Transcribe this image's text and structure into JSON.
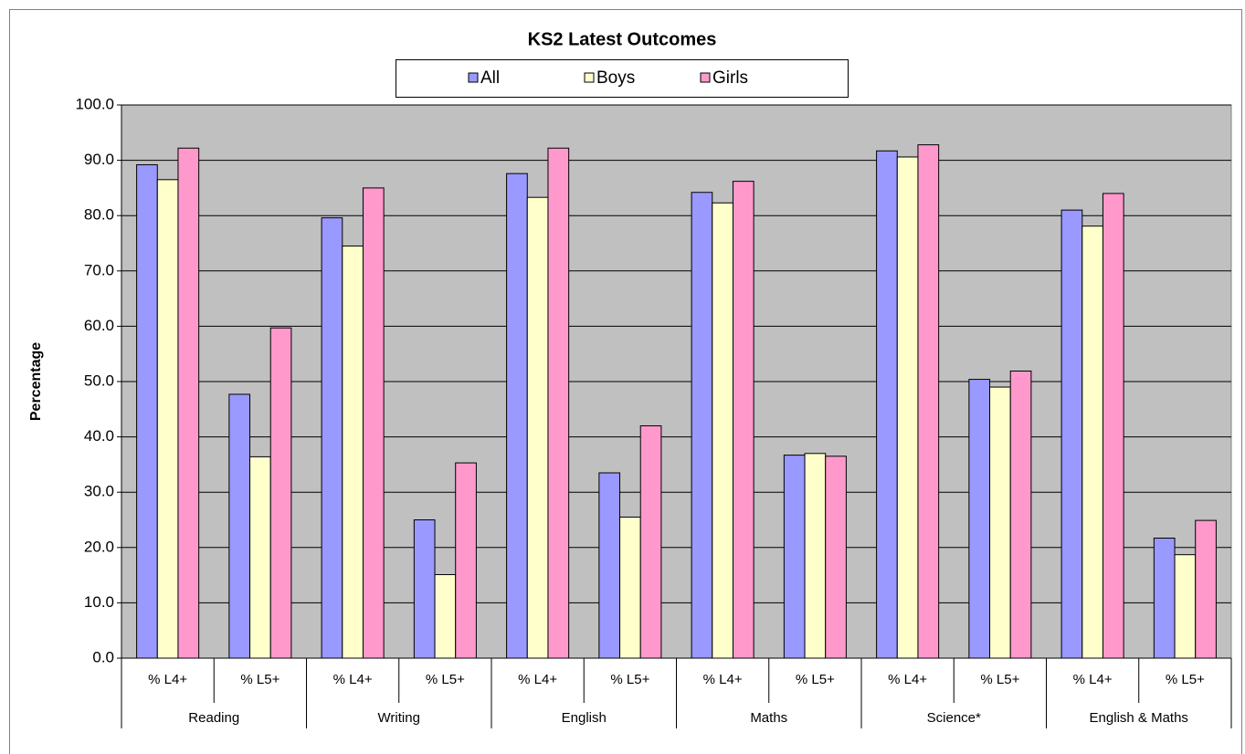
{
  "chart_data": {
    "type": "bar",
    "title": "KS2 Latest Outcomes",
    "ylabel": "Percentage",
    "categories": [
      "% L4+",
      "% L5+",
      "% L4+",
      "% L5+",
      "% L4+",
      "% L5+",
      "% L4+",
      "% L5+",
      "% L4+",
      "% L5+",
      "% L4+",
      "% L5+"
    ],
    "category_groups": [
      "Reading",
      "Writing",
      "English",
      "Maths",
      "Science*",
      "English & Maths"
    ],
    "series": [
      {
        "name": "All",
        "color": "#9999ff",
        "values": [
          89.2,
          47.7,
          79.6,
          25.0,
          87.6,
          33.5,
          84.2,
          36.7,
          91.7,
          50.4,
          81.0,
          21.7
        ]
      },
      {
        "name": "Boys",
        "color": "#ffffcc",
        "values": [
          86.5,
          36.4,
          74.5,
          15.1,
          83.3,
          25.5,
          82.3,
          37.0,
          90.6,
          49.0,
          78.1,
          18.7
        ]
      },
      {
        "name": "Girls",
        "color": "#ff99cc",
        "values": [
          92.2,
          59.7,
          85.0,
          35.3,
          92.2,
          42.0,
          86.2,
          36.5,
          92.8,
          51.9,
          84.0,
          24.9
        ]
      }
    ],
    "ylim": [
      0,
      100
    ],
    "yticks": [
      {
        "value": 0,
        "label": "0.0"
      },
      {
        "value": 10,
        "label": "10.0"
      },
      {
        "value": 20,
        "label": "20.0"
      },
      {
        "value": 30,
        "label": "30.0"
      },
      {
        "value": 40,
        "label": "40.0"
      },
      {
        "value": 50,
        "label": "50.0"
      },
      {
        "value": 60,
        "label": "60.0"
      },
      {
        "value": 70,
        "label": "70.0"
      },
      {
        "value": 80,
        "label": "80.0"
      },
      {
        "value": 90,
        "label": "90.0"
      },
      {
        "value": 100,
        "label": "100.0"
      }
    ],
    "grid": true,
    "legend": "top"
  }
}
